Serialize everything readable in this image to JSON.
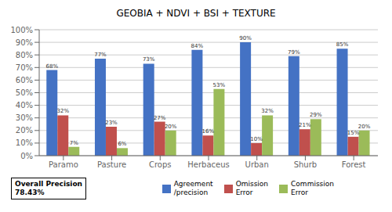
{
  "chart_data": {
    "type": "bar",
    "title": "GEOBIA + NDVI + BSI + TEXTURE",
    "categories": [
      "Paramo",
      "Pasture",
      "Crops",
      "Herbaceus",
      "Urban",
      "Shurb",
      "Forest"
    ],
    "series": [
      {
        "name": "Agreement\n/precision",
        "color": "#4472C4",
        "values": [
          68,
          77,
          73,
          84,
          90,
          79,
          85
        ],
        "value_labels": [
          "68%",
          "77%",
          "73%",
          "84%",
          "90%",
          "79%",
          "85%"
        ]
      },
      {
        "name": "Omission\nError",
        "color": "#C0504D",
        "values": [
          32,
          23,
          27,
          16,
          10,
          21,
          15
        ],
        "value_labels": [
          "32%",
          "23%",
          "27%",
          "16%",
          "10%",
          "21%",
          "15%"
        ]
      },
      {
        "name": "Commission\nError",
        "color": "#9BBB59",
        "values": [
          7,
          6,
          20,
          53,
          32,
          29,
          20
        ],
        "value_labels": [
          "7%",
          "6%",
          "20%",
          "53%",
          "32%",
          "29%",
          "20%"
        ]
      }
    ],
    "ylim": [
      0,
      100
    ],
    "yticks": [
      {
        "value": 0,
        "label": "0%"
      },
      {
        "value": 10,
        "label": "10%"
      },
      {
        "value": 20,
        "label": "20%"
      },
      {
        "value": 30,
        "label": "30%"
      },
      {
        "value": 40,
        "label": "40%"
      },
      {
        "value": 50,
        "label": "50%"
      },
      {
        "value": 60,
        "label": "60%"
      },
      {
        "value": 70,
        "label": "70%"
      },
      {
        "value": 80,
        "label": "80%"
      },
      {
        "value": 90,
        "label": "90%"
      },
      {
        "value": 100,
        "label": "100%"
      }
    ],
    "grid": true,
    "data_labels": true,
    "legend": "bottom",
    "annotations": [
      "Overall Precision\n78.43%"
    ]
  }
}
